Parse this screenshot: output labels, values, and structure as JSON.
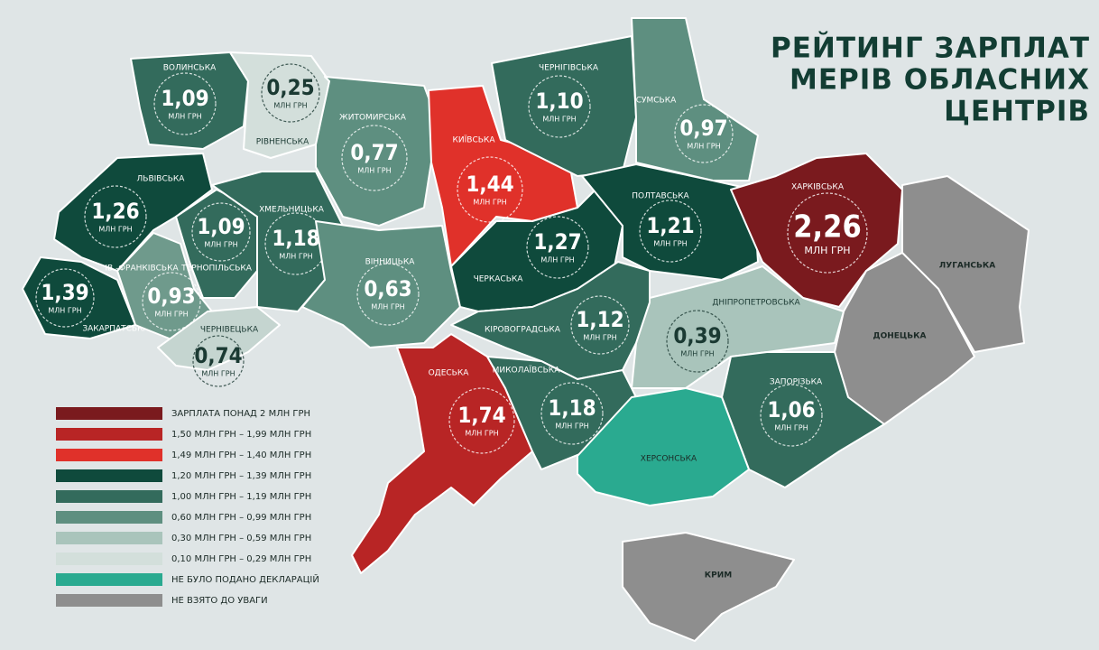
{
  "title": [
    "РЕЙТИНГ ЗАРПЛАТ",
    "МЕРІВ ОБЛАСНИХ",
    "ЦЕНТРІВ"
  ],
  "unit": "МЛН ГРН",
  "regions": [
    {
      "name": "ВОЛИНСЬКА",
      "value": "1,09",
      "color": "#336b5c"
    },
    {
      "name": "РІВНЕНСЬКА",
      "value": "0,25",
      "color": "#d3dfdb"
    },
    {
      "name": "ЖИТОМИРСЬКА",
      "value": "0,77",
      "color": "#5e8f80"
    },
    {
      "name": "КИЇВСЬКА",
      "value": "1,44",
      "color": "#e0312a"
    },
    {
      "name": "ЧЕРНІГІВСЬКА",
      "value": "1,10",
      "color": "#336b5c"
    },
    {
      "name": "СУМСЬКА",
      "value": "0,97",
      "color": "#5e8f80"
    },
    {
      "name": "ЛЬВІВСЬКА",
      "value": "1,26",
      "color": "#0f4a3c"
    },
    {
      "name": "ЗАКАРПАТСЬКА",
      "value": "1,39",
      "color": "#0f4a3c"
    },
    {
      "name": "ІВ.-ФРАНКІВСЬКА",
      "value": "0,93",
      "color": "#6f9a8c"
    },
    {
      "name": "ТЕРНОПІЛЬСЬКА",
      "value": "1,09",
      "color": "#336b5c"
    },
    {
      "name": "ХМЕЛЬНИЦЬКА",
      "value": "1,18",
      "color": "#336b5c"
    },
    {
      "name": "ЧЕРНІВЕЦЬКА",
      "value": "0,74",
      "color": "#c5d5d0"
    },
    {
      "name": "ВІННИЦЬКА",
      "value": "0,63",
      "color": "#5e8f80"
    },
    {
      "name": "ЧЕРКАСЬКА",
      "value": "1,27",
      "color": "#0f4a3c"
    },
    {
      "name": "ПОЛТАВСЬКА",
      "value": "1,21",
      "color": "#0f4a3c"
    },
    {
      "name": "ХАРКІВСЬКА",
      "value": "2,26",
      "color": "#7a1a1e"
    },
    {
      "name": "ЛУГАНСЬКА",
      "color": "#8e8e8e"
    },
    {
      "name": "ДОНЕЦЬКА",
      "color": "#8e8e8e"
    },
    {
      "name": "ДНІПРОПЕТРОВСЬКА",
      "value": "0,39",
      "color": "#a9c4bb"
    },
    {
      "name": "КІРОВОГРАДСЬКА",
      "value": "1,12",
      "color": "#336b5c"
    },
    {
      "name": "ОДЕСЬКА",
      "value": "1,74",
      "color": "#b82525"
    },
    {
      "name": "МИКОЛАЇВСЬКА",
      "value": "1,18",
      "color": "#336b5c"
    },
    {
      "name": "ЗАПОРІЗЬКА",
      "value": "1,06",
      "color": "#336b5c"
    },
    {
      "name": "ХЕРСОНСЬКА",
      "color": "#2aaa90"
    },
    {
      "name": "КРИМ",
      "color": "#8e8e8e"
    }
  ],
  "legend": [
    {
      "label": "ЗАРПЛАТА ПОНАД 2 МЛН ГРН",
      "color": "#7a1a1e"
    },
    {
      "label": "1,50 МЛН ГРН – 1,99 МЛН ГРН",
      "color": "#b82525"
    },
    {
      "label": "1,49 МЛН ГРН – 1,40 МЛН ГРН",
      "color": "#e0312a"
    },
    {
      "label": "1,20 МЛН ГРН – 1,39 МЛН ГРН",
      "color": "#0f4a3c"
    },
    {
      "label": "1,00 МЛН ГРН – 1,19 МЛН ГРН",
      "color": "#336b5c"
    },
    {
      "label": "0,60 МЛН ГРН – 0,99 МЛН ГРН",
      "color": "#5e8f80"
    },
    {
      "label": "0,30 МЛН ГРН – 0,59 МЛН ГРН",
      "color": "#a9c4bb"
    },
    {
      "label": "0,10 МЛН ГРН – 0,29 МЛН ГРН",
      "color": "#d3dfdb"
    },
    {
      "label": "НЕ БУЛО ПОДАНО ДЕКЛАРАЦІЙ",
      "color": "#2aaa90"
    },
    {
      "label": "НЕ ВЗЯТО ДО УВАГИ",
      "color": "#8e8e8e"
    }
  ]
}
